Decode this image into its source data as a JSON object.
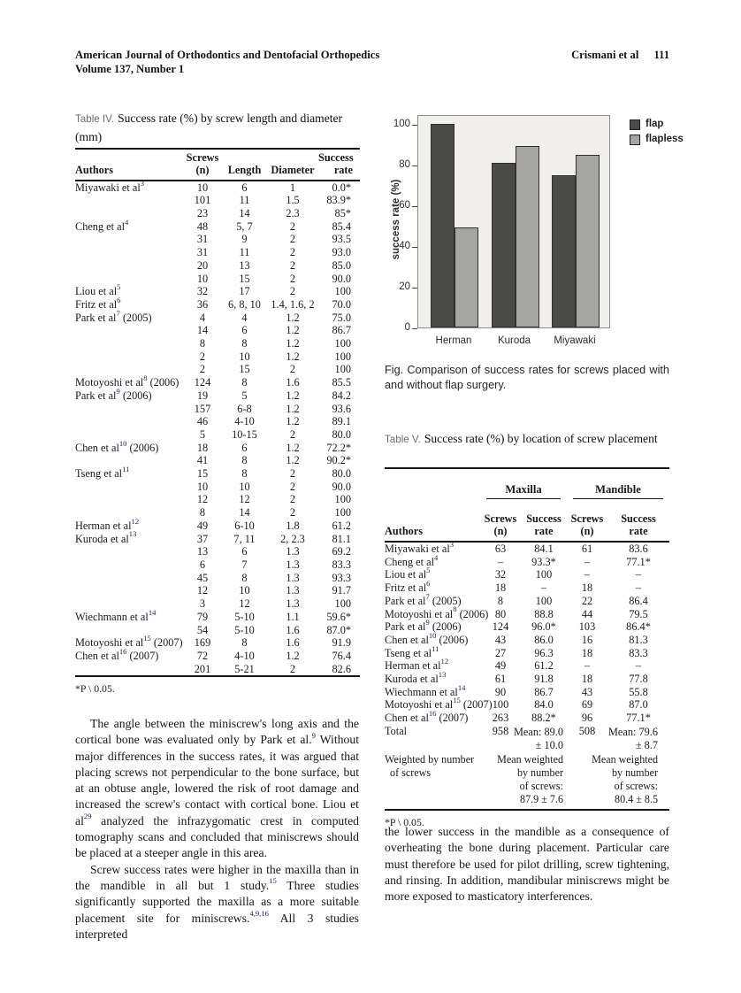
{
  "header": {
    "journal_line1": "American Journal of Orthodontics and Dentofacial Orthopedics",
    "journal_line2": "Volume 137, Number 1",
    "authors_ref": "Crismani et al",
    "page_number": "111"
  },
  "table4": {
    "label": "Table IV.",
    "title": "Success rate (%) by screw length and diameter (mm)",
    "columns": {
      "authors": "Authors",
      "screws": "Screws\n(n)",
      "length": "Length",
      "diameter": "Diameter",
      "success": "Success\nrate"
    },
    "rows": [
      [
        "Miyawaki et al^3^",
        "10",
        "6",
        "1",
        "0.0*"
      ],
      [
        "",
        "101",
        "11",
        "1.5",
        "83.9*"
      ],
      [
        "",
        "23",
        "14",
        "2.3",
        "85*"
      ],
      [
        "Cheng et al^4^",
        "48",
        "5, 7",
        "2",
        "85.4"
      ],
      [
        "",
        "31",
        "9",
        "2",
        "93.5"
      ],
      [
        "",
        "31",
        "11",
        "2",
        "93.0"
      ],
      [
        "",
        "20",
        "13",
        "2",
        "85.0"
      ],
      [
        "",
        "10",
        "15",
        "2",
        "90.0"
      ],
      [
        "Liou et al^5^",
        "32",
        "17",
        "2",
        "100"
      ],
      [
        "Fritz et al^6^",
        "36",
        "6, 8, 10",
        "1.4, 1.6, 2",
        "70.0"
      ],
      [
        "Park et al^7^ (2005)",
        "4",
        "4",
        "1.2",
        "75.0"
      ],
      [
        "",
        "14",
        "6",
        "1.2",
        "86.7"
      ],
      [
        "",
        "8",
        "8",
        "1.2",
        "100"
      ],
      [
        "",
        "2",
        "10",
        "1.2",
        "100"
      ],
      [
        "",
        "2",
        "15",
        "2",
        "100"
      ],
      [
        "Motoyoshi et al^8^ (2006)",
        "124",
        "8",
        "1.6",
        "85.5"
      ],
      [
        "Park et al^9^ (2006)",
        "19",
        "5",
        "1.2",
        "84.2"
      ],
      [
        "",
        "157",
        "6-8",
        "1.2",
        "93.6"
      ],
      [
        "",
        "46",
        "4-10",
        "1.2",
        "89.1"
      ],
      [
        "",
        "5",
        "10-15",
        "2",
        "80.0"
      ],
      [
        "Chen et al^10^ (2006)",
        "18",
        "6",
        "1.2",
        "72.2*"
      ],
      [
        "",
        "41",
        "8",
        "1.2",
        "90.2*"
      ],
      [
        "Tseng et al^11^",
        "15",
        "8",
        "2",
        "80.0"
      ],
      [
        "",
        "10",
        "10",
        "2",
        "90.0"
      ],
      [
        "",
        "12",
        "12",
        "2",
        "100"
      ],
      [
        "",
        "8",
        "14",
        "2",
        "100"
      ],
      [
        "Herman et al^12^",
        "49",
        "6-10",
        "1.8",
        "61.2"
      ],
      [
        "Kuroda et al^13^",
        "37",
        "7, 11",
        "2, 2.3",
        "81.1"
      ],
      [
        "",
        "13",
        "6",
        "1.3",
        "69.2"
      ],
      [
        "",
        "6",
        "7",
        "1.3",
        "83.3"
      ],
      [
        "",
        "45",
        "8",
        "1.3",
        "93.3"
      ],
      [
        "",
        "12",
        "10",
        "1.3",
        "91.7"
      ],
      [
        "",
        "3",
        "12",
        "1.3",
        "100"
      ],
      [
        "Wiechmann et al^14^",
        "79",
        "5-10",
        "1.1",
        "59.6*"
      ],
      [
        "",
        "54",
        "5-10",
        "1.6",
        "87.0*"
      ],
      [
        "Motoyoshi et al^15^ (2007)",
        "169",
        "8",
        "1.6",
        "91.9"
      ],
      [
        "Chen et al^16^ (2007)",
        "72",
        "4-10",
        "1.2",
        "76.4"
      ],
      [
        "",
        "201",
        "5-21",
        "2",
        "82.6"
      ]
    ],
    "footnote": "*P \\ 0.05."
  },
  "figure": {
    "caption": "Fig. Comparison of success rates for screws placed with and without flap surgery."
  },
  "chart_data": {
    "type": "bar",
    "categories": [
      "Herman",
      "Kuroda",
      "Miyawaki"
    ],
    "series": [
      {
        "name": "flap",
        "values": [
          100,
          81,
          75
        ]
      },
      {
        "name": "flapless",
        "values": [
          49,
          89,
          85
        ]
      }
    ],
    "title": "",
    "xlabel": "",
    "ylabel": "success rate (%)",
    "yticks": [
      0,
      20,
      40,
      60,
      80,
      100
    ],
    "ylim": [
      0,
      105
    ],
    "grid": false,
    "legend_position": "top-right-outside",
    "colors": {
      "flap": "#4a4a48",
      "flapless": "#a5a5a3"
    },
    "plot_background": "#f0efec"
  },
  "table5": {
    "label": "Table V.",
    "title": "Success rate (%) by location of screw placement",
    "group_headers": [
      "Maxilla",
      "Mandible"
    ],
    "columns": {
      "authors": "Authors",
      "screws1": "Screws\n(n)",
      "success1": "Success\nrate",
      "screws2": "Screws\n(n)",
      "success2": "Success\nrate"
    },
    "rows": [
      [
        "Miyawaki et al^3^",
        "63",
        "84.1",
        "61",
        "83.6"
      ],
      [
        "Cheng et al^4^",
        "–",
        "93.3*",
        "–",
        "77.1*"
      ],
      [
        "Liou et al^5^",
        "32",
        "100",
        "–",
        "–"
      ],
      [
        "Fritz et al^6^",
        "18",
        "–",
        "18",
        "–"
      ],
      [
        "Park et al^7^ (2005)",
        "8",
        "100",
        "22",
        "86.4"
      ],
      [
        "Motoyoshi et al^8^ (2006)",
        "80",
        "88.8",
        "44",
        "79.5"
      ],
      [
        "Park et al^9^ (2006)",
        "124",
        "96.0*",
        "103",
        "86.4*"
      ],
      [
        "Chen et al^10^ (2006)",
        "43",
        "86.0",
        "16",
        "81.3"
      ],
      [
        "Tseng et al^11^",
        "27",
        "96.3",
        "18",
        "83.3"
      ],
      [
        "Herman et al^12^",
        "49",
        "61.2",
        "–",
        "–"
      ],
      [
        "Kuroda et al^13^",
        "61",
        "91.8",
        "18",
        "77.8"
      ],
      [
        "Wiechmann et al^14^",
        "90",
        "86.7",
        "43",
        "55.8"
      ],
      [
        "Motoyoshi et al^15^ (2007)",
        "100",
        "84.0",
        "69",
        "87.0"
      ],
      [
        "Chen et al^16^ (2007)",
        "263",
        "88.2*",
        "96",
        "77.1*"
      ],
      [
        "Total",
        "958",
        "Mean: 89.0\n± 10.0",
        "508",
        "Mean: 79.6\n± 8.7"
      ],
      [
        "Weighted by number\n  of screws",
        "",
        "Mean weighted\nby number\nof screws:\n87.9 ± 7.6",
        "",
        "Mean weighted\nby number\nof screws:\n80.4 ± 8.5"
      ]
    ],
    "footnote": "*P \\ 0.05."
  },
  "body": {
    "left_paragraphs": [
      "The angle between the miniscrew's long axis and the cortical bone was evaluated only by Park et al.^9^ Without major differences in the success rates, it was argued that placing screws not perpendicular to the bone surface, but at an obtuse angle, lowered the risk of root damage and increased the screw's contact with cortical bone. Liou et al^29^ analyzed the infrazygomatic crest in computed tomography scans and concluded that miniscrews should be placed at a steeper angle in this area.",
      "Screw success rates were higher in the maxilla than in the mandible in all but 1 study.^15^ Three studies significantly supported the maxilla as a more suitable placement site for miniscrews.^4,9,16^ All 3 studies interpreted"
    ],
    "right_paragraphs": [
      "the lower success in the mandible as a consequence of overheating the bone during placement. Particular care must therefore be used for pilot drilling, screw tightening, and rinsing. In addition, mandibular miniscrews might be more exposed to masticatory interferences."
    ]
  }
}
